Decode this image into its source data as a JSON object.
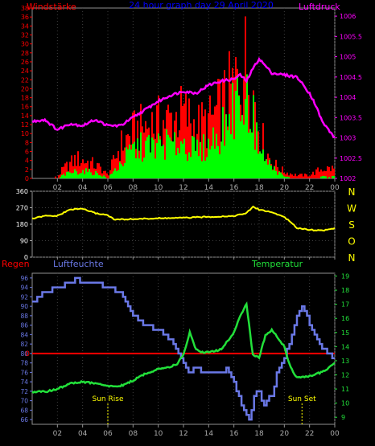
{
  "chart_data": [
    {
      "type": "bar",
      "title": "24 hour graph day  29 April 2020",
      "left_axis_label": "Windstärke",
      "right_axis_label": "Luftdruck",
      "x_ticks": [
        "02",
        "04",
        "06",
        "08",
        "10",
        "12",
        "14",
        "16",
        "18",
        "20",
        "22",
        "00"
      ],
      "y_left_ticks": [
        "0",
        "2",
        "4",
        "6",
        "8",
        "10",
        "12",
        "14",
        "16",
        "18",
        "20",
        "22",
        "24",
        "26",
        "28",
        "30",
        "32",
        "34",
        "36",
        "38"
      ],
      "y_left_range": [
        0,
        38
      ],
      "y_right_ticks": [
        "1002",
        "1002.5",
        "1003",
        "1003.5",
        "1004",
        "1004.5",
        "1005",
        "1005.5",
        "1006"
      ],
      "y_right_range": [
        1002,
        1006.2
      ],
      "colors": {
        "gust": "#ff0000",
        "wind": "#00ff00",
        "pressure": "#ff00ff",
        "title": "#0000ff",
        "axis_left": "#ff0000",
        "axis_right": "#ff00ff"
      },
      "wind_profile_hours": [
        0,
        1,
        2,
        2.5,
        3.5,
        4.5,
        5.5,
        6,
        7,
        8,
        9,
        10,
        11,
        12,
        13,
        14,
        15,
        16,
        16.5,
        17,
        17.5,
        18,
        18.5,
        19,
        20,
        21,
        22,
        23,
        24
      ],
      "wind_profile_values": [
        0,
        0,
        0,
        1,
        2,
        2,
        1,
        0,
        4,
        8,
        9,
        9,
        10,
        10,
        8,
        9,
        14,
        20,
        24,
        26,
        17,
        12,
        6,
        3,
        0.5,
        0,
        0,
        0.5,
        0.5
      ],
      "gust_profile_values": [
        0,
        0,
        0.5,
        3,
        6,
        5,
        3,
        1,
        10,
        14,
        16,
        17,
        18,
        20,
        16,
        17,
        22,
        28,
        33,
        36,
        27,
        16,
        9,
        5,
        2,
        1,
        1,
        3,
        3
      ],
      "pressure_hours": [
        0,
        1,
        2,
        3,
        4,
        5,
        6,
        7,
        8,
        9,
        10,
        11,
        12,
        13,
        14,
        15,
        16,
        16.5,
        17,
        17.5,
        18,
        19,
        20,
        21,
        22,
        22.5,
        23,
        24
      ],
      "pressure_values": [
        1003.4,
        1003.45,
        1003.2,
        1003.35,
        1003.3,
        1003.45,
        1003.3,
        1003.3,
        1003.5,
        1003.7,
        1003.9,
        1004.05,
        1004.15,
        1004.1,
        1004.3,
        1004.4,
        1004.45,
        1004.55,
        1004.4,
        1004.7,
        1004.95,
        1004.6,
        1004.55,
        1004.5,
        1004.1,
        1003.8,
        1003.4,
        1003.0
      ]
    },
    {
      "type": "line",
      "right_labels": [
        "N",
        "W",
        "S",
        "O",
        "N"
      ],
      "y_ticks": [
        "0",
        "90",
        "180",
        "270",
        "360"
      ],
      "y_range": [
        0,
        360
      ],
      "x_ticks": [
        "02",
        "04",
        "06",
        "08",
        "10",
        "12",
        "14",
        "16",
        "18",
        "20",
        "22",
        "00"
      ],
      "color": "#ffff00",
      "hours": [
        0,
        1,
        2,
        3,
        4,
        5,
        6,
        6.5,
        8,
        10,
        12,
        14,
        16,
        17,
        17.5,
        18,
        19,
        20,
        21,
        22,
        23,
        24
      ],
      "values": [
        210,
        225,
        225,
        260,
        265,
        240,
        230,
        205,
        208,
        212,
        215,
        220,
        225,
        240,
        275,
        260,
        245,
        220,
        160,
        150,
        145,
        158
      ]
    },
    {
      "type": "line",
      "left_label": "Regen",
      "humidity_label": "Luftfeuchte",
      "temperature_label": "Temperatur",
      "x_ticks": [
        "02",
        "04",
        "06",
        "08",
        "10",
        "12",
        "14",
        "16",
        "18",
        "20",
        "22",
        "00"
      ],
      "y_left_ticks": [
        "66",
        "68",
        "70",
        "72",
        "74",
        "76",
        "78",
        "80",
        "82",
        "84",
        "86",
        "88",
        "90",
        "92",
        "94",
        "96"
      ],
      "y_left_range": [
        65,
        97
      ],
      "y_right_ticks": [
        "9",
        "10",
        "11",
        "12",
        "13",
        "14",
        "15",
        "16",
        "17",
        "18",
        "19"
      ],
      "y_right_range": [
        8.5,
        19.2
      ],
      "rain_value": 0,
      "annotations": [
        "Sun Rise",
        "Sun Set"
      ],
      "sun_rise_hour": 6.0,
      "sun_set_hour": 21.4,
      "colors": {
        "humidity": "#6a78e6",
        "temperature": "#22e03a",
        "rain": "#ff0000",
        "regen_label": "#ff0000",
        "luft_label": "#6a78e6",
        "temp_label": "#22e03a"
      },
      "humidity": {
        "hours": [
          0,
          1,
          2,
          3,
          3.5,
          4,
          5,
          6,
          7,
          7.5,
          8,
          9,
          10,
          11,
          11.5,
          12,
          12.5,
          13,
          13.5,
          14,
          15,
          15.5,
          16,
          16.5,
          17,
          17.3,
          17.6,
          18,
          18.3,
          18.6,
          19,
          19.5,
          20,
          20.5,
          21,
          21.5,
          22,
          22.5,
          23,
          24
        ],
        "values": [
          91,
          93,
          94,
          95,
          96,
          95,
          95,
          94,
          93,
          90,
          88,
          86,
          85,
          83,
          80,
          78,
          76,
          77,
          76,
          76,
          76,
          77,
          74,
          70,
          67,
          66,
          71,
          72,
          69,
          70,
          71,
          77,
          79,
          83,
          88,
          90,
          86,
          83,
          81,
          79
        ]
      },
      "temperature": {
        "hours": [
          0,
          1,
          2,
          3,
          4,
          5,
          6,
          7,
          8,
          9,
          10,
          11,
          11.5,
          12,
          12.5,
          13,
          13.5,
          14,
          15,
          16,
          16.5,
          17,
          17.5,
          18,
          18.5,
          19,
          19.5,
          20,
          20.5,
          21,
          22,
          23,
          24
        ],
        "values": [
          10.8,
          10.8,
          11.0,
          11.4,
          11.5,
          11.4,
          11.2,
          11.2,
          11.6,
          12.1,
          12.4,
          12.6,
          12.8,
          13.4,
          15.0,
          13.8,
          13.6,
          13.6,
          13.8,
          15.0,
          16.2,
          17.0,
          13.4,
          13.2,
          14.8,
          15.2,
          14.6,
          14.0,
          12.5,
          11.8,
          11.9,
          12.2,
          12.8
        ]
      }
    }
  ]
}
